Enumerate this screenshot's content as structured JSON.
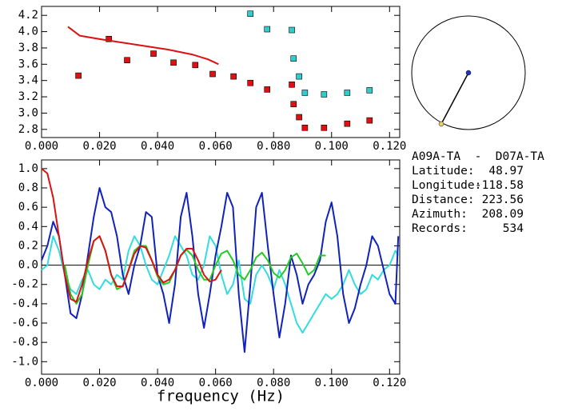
{
  "chart_data": [
    {
      "type": "scatter",
      "xlim": [
        0,
        0.1235
      ],
      "ylim": [
        2.7,
        4.31
      ],
      "xticks": [
        {
          "value": 0,
          "label": "0.000"
        },
        {
          "value": 0.02,
          "label": "0.020"
        },
        {
          "value": 0.04,
          "label": "0.040"
        },
        {
          "value": 0.06,
          "label": "0.060"
        },
        {
          "value": 0.08,
          "label": "0.080"
        },
        {
          "value": 0.1,
          "label": "0.100"
        },
        {
          "value": 0.12,
          "label": "0.120"
        }
      ],
      "yticks": [
        {
          "value": 4.2,
          "label": "4.2"
        },
        {
          "value": 4.0,
          "label": "4.0"
        },
        {
          "value": 3.8,
          "label": "3.8"
        },
        {
          "value": 3.6,
          "label": "3.6"
        },
        {
          "value": 3.4,
          "label": "3.4"
        },
        {
          "value": 3.2,
          "label": "3.2"
        },
        {
          "value": 3.0,
          "label": "3.0"
        },
        {
          "value": 2.8,
          "label": "2.8"
        }
      ],
      "series": [
        {
          "type": "scatter",
          "color": "#dd1111",
          "x": [
            0.0127,
            0.0232,
            0.0295,
            0.0386,
            0.0455,
            0.053,
            0.059,
            0.0662,
            0.072,
            0.0778,
            0.0863,
            0.0869,
            0.0888,
            0.0908,
            0.0974,
            0.1054,
            0.1131
          ],
          "values": [
            3.46,
            3.91,
            3.65,
            3.73,
            3.62,
            3.59,
            3.48,
            3.45,
            3.37,
            3.29,
            3.35,
            3.11,
            2.95,
            2.82,
            2.82,
            2.87,
            2.91
          ]
        },
        {
          "type": "scatter",
          "color": "#33cccc",
          "x": [
            0.072,
            0.0778,
            0.0863,
            0.0869,
            0.0888,
            0.0908,
            0.0974,
            0.1054,
            0.1131
          ],
          "values": [
            4.22,
            4.03,
            4.02,
            3.67,
            3.45,
            3.25,
            3.23,
            3.25,
            3.28
          ]
        },
        {
          "type": "line",
          "color": "#dd1111",
          "x": [
            0.0091,
            0.0132,
            0.0215,
            0.0326,
            0.0436,
            0.0519,
            0.0574,
            0.061
          ],
          "values": [
            4.06,
            3.95,
            3.9,
            3.84,
            3.78,
            3.72,
            3.66,
            3.6
          ]
        }
      ]
    },
    {
      "type": "line",
      "xlabel": "frequency (Hz)",
      "xlim": [
        0,
        0.1235
      ],
      "ylim": [
        -1.13,
        1.09
      ],
      "xticks": [
        {
          "value": 0,
          "label": "0.000"
        },
        {
          "value": 0.02,
          "label": "0.020"
        },
        {
          "value": 0.04,
          "label": "0.040"
        },
        {
          "value": 0.06,
          "label": "0.060"
        },
        {
          "value": 0.08,
          "label": "0.080"
        },
        {
          "value": 0.1,
          "label": "0.100"
        },
        {
          "value": 0.12,
          "label": "0.120"
        }
      ],
      "yticks": [
        {
          "value": 1,
          "label": "1.0"
        },
        0.8,
        0.6,
        0.4,
        0.2,
        {
          "value": 0,
          "label": "0.0"
        },
        -0.2,
        -0.4,
        -0.6,
        -0.8,
        {
          "value": -1,
          "label": "-1.0"
        }
      ],
      "series": [
        {
          "type": "line",
          "color": "#33dddd",
          "x": [
            0,
            0.002,
            0.004,
            0.006,
            0.008,
            0.01,
            0.012,
            0.014,
            0.016,
            0.018,
            0.02,
            0.022,
            0.024,
            0.026,
            0.028,
            0.03,
            0.032,
            0.034,
            0.036,
            0.038,
            0.04,
            0.042,
            0.044,
            0.046,
            0.048,
            0.05,
            0.052,
            0.054,
            0.056,
            0.058,
            0.06,
            0.062,
            0.064,
            0.066,
            0.068,
            0.07,
            0.072,
            0.074,
            0.076,
            0.078,
            0.08,
            0.082,
            0.084,
            0.086,
            0.088,
            0.09,
            0.092,
            0.094,
            0.096,
            0.098,
            0.1,
            0.102,
            0.104,
            0.106,
            0.108,
            0.11,
            0.112,
            0.114,
            0.116,
            0.118,
            0.12,
            0.122,
            0.123
          ],
          "values": [
            -0.05,
            0.0,
            0.3,
            0.15,
            -0.1,
            -0.25,
            -0.3,
            -0.15,
            -0.05,
            -0.2,
            -0.25,
            -0.15,
            -0.2,
            -0.1,
            -0.15,
            0.15,
            0.3,
            0.2,
            0.0,
            -0.15,
            -0.2,
            -0.05,
            0.1,
            0.3,
            0.2,
            0.1,
            -0.1,
            -0.15,
            0.0,
            0.3,
            0.2,
            -0.1,
            -0.3,
            -0.2,
            0.05,
            -0.35,
            -0.4,
            -0.1,
            0.0,
            -0.1,
            -0.25,
            -0.05,
            -0.2,
            -0.4,
            -0.6,
            -0.7,
            -0.6,
            -0.5,
            -0.4,
            -0.3,
            -0.35,
            -0.3,
            -0.2,
            -0.05,
            -0.2,
            -0.3,
            -0.25,
            -0.1,
            -0.15,
            -0.05,
            0.0,
            0.15,
            0.1
          ]
        },
        {
          "type": "line",
          "color": "#1122bb",
          "x": [
            0,
            0.002,
            0.004,
            0.006,
            0.008,
            0.01,
            0.012,
            0.014,
            0.016,
            0.018,
            0.02,
            0.022,
            0.024,
            0.026,
            0.028,
            0.03,
            0.032,
            0.034,
            0.036,
            0.038,
            0.04,
            0.042,
            0.044,
            0.046,
            0.048,
            0.05,
            0.052,
            0.054,
            0.056,
            0.058,
            0.06,
            0.062,
            0.064,
            0.066,
            0.068,
            0.07,
            0.072,
            0.074,
            0.076,
            0.078,
            0.08,
            0.082,
            0.084,
            0.086,
            0.088,
            0.09,
            0.092,
            0.094,
            0.096,
            0.098,
            0.1,
            0.102,
            0.104,
            0.106,
            0.108,
            0.11,
            0.112,
            0.114,
            0.116,
            0.118,
            0.12,
            0.122,
            0.123
          ],
          "values": [
            0.05,
            0.2,
            0.45,
            0.3,
            -0.1,
            -0.5,
            -0.55,
            -0.3,
            0.1,
            0.5,
            0.8,
            0.6,
            0.55,
            0.3,
            -0.1,
            -0.3,
            0.0,
            0.2,
            0.55,
            0.5,
            -0.1,
            -0.3,
            -0.6,
            -0.2,
            0.5,
            0.75,
            0.3,
            -0.3,
            -0.65,
            -0.3,
            0.1,
            0.4,
            0.75,
            0.6,
            -0.3,
            -0.9,
            -0.2,
            0.6,
            0.75,
            0.2,
            -0.3,
            -0.75,
            -0.4,
            0.1,
            -0.1,
            -0.4,
            -0.2,
            -0.1,
            0.05,
            0.45,
            0.65,
            0.3,
            -0.3,
            -0.6,
            -0.45,
            -0.2,
            0.0,
            0.3,
            0.2,
            -0.05,
            -0.3,
            -0.4,
            0.3
          ]
        },
        {
          "type": "line",
          "color": "#22cc22",
          "x": [
            0.008,
            0.01,
            0.012,
            0.014,
            0.016,
            0.018,
            0.02,
            0.022,
            0.024,
            0.026,
            0.028,
            0.03,
            0.032,
            0.034,
            0.036,
            0.038,
            0.04,
            0.042,
            0.044,
            0.046,
            0.048,
            0.05,
            0.052,
            0.054,
            0.056,
            0.058,
            0.06,
            0.062,
            0.064,
            0.066,
            0.068,
            0.07,
            0.072,
            0.074,
            0.076,
            0.078,
            0.08,
            0.082,
            0.084,
            0.086,
            0.088,
            0.09,
            0.092,
            0.094,
            0.096,
            0.098
          ],
          "values": [
            0.0,
            -0.3,
            -0.4,
            -0.3,
            0.0,
            0.25,
            0.3,
            0.15,
            -0.1,
            -0.25,
            -0.22,
            -0.05,
            0.15,
            0.2,
            0.2,
            0.05,
            -0.12,
            -0.2,
            -0.18,
            -0.05,
            0.1,
            0.16,
            0.1,
            -0.05,
            -0.15,
            -0.15,
            0.0,
            0.12,
            0.15,
            0.05,
            -0.1,
            -0.15,
            -0.05,
            0.08,
            0.13,
            0.05,
            -0.08,
            -0.13,
            -0.05,
            0.08,
            0.12,
            0.02,
            -0.1,
            -0.05,
            0.1,
            0.1
          ]
        },
        {
          "type": "line",
          "color": "#dd1111",
          "x": [
            0,
            0.002,
            0.004,
            0.006,
            0.008,
            0.01,
            0.012,
            0.014,
            0.016,
            0.018,
            0.02,
            0.022,
            0.024,
            0.026,
            0.028,
            0.03,
            0.032,
            0.034,
            0.036,
            0.038,
            0.04,
            0.042,
            0.044,
            0.046,
            0.048,
            0.05,
            0.052,
            0.054,
            0.056,
            0.058,
            0.06,
            0.062
          ],
          "values": [
            1.0,
            0.95,
            0.7,
            0.3,
            -0.1,
            -0.35,
            -0.38,
            -0.2,
            0.05,
            0.25,
            0.3,
            0.15,
            -0.1,
            -0.22,
            -0.22,
            -0.05,
            0.12,
            0.2,
            0.18,
            0.05,
            -0.1,
            -0.18,
            -0.15,
            -0.05,
            0.1,
            0.17,
            0.17,
            0.05,
            -0.1,
            -0.17,
            -0.15,
            -0.05
          ]
        }
      ]
    }
  ],
  "info": {
    "pair": "A09A-TA  -  D07A-TA",
    "rows": [
      {
        "label": "Latitude:",
        "value": "48.97"
      },
      {
        "label": "Longitude:",
        "value": "-118.58"
      },
      {
        "label": "Distance:",
        "value": "223.56"
      },
      {
        "label": "Azimuth:",
        "value": "208.09"
      },
      {
        "label": "Records:",
        "value": "534"
      }
    ]
  }
}
